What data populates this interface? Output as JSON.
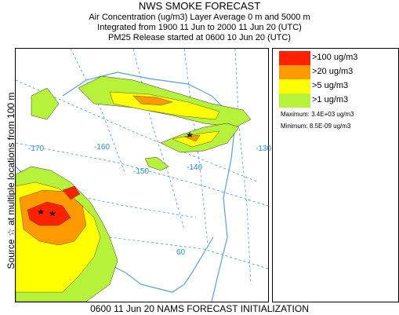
{
  "header": {
    "title": "NWS SMOKE FORECAST",
    "line1": "Air Concentration (ug/m3) Layer Average    0 m and  5000 m",
    "line2": "Integrated from 1900 11 Jun to 2000 11 Jun 20 (UTC)",
    "line3": "PM25 Release started at 0600 10 Jun 20 (UTC)"
  },
  "side_label": "Source ☆ at multiple locations     from   100 m",
  "map": {
    "longitude_labels": [
      "-170",
      "-160",
      "-150",
      "-140",
      "-130"
    ],
    "latitude_labels": [
      "60"
    ],
    "colors": {
      "coast": "#5aa0d8",
      "grid": "#2a8fd0",
      "level1": "#b6f23a",
      "level2": "#ffff00",
      "level3": "#ff9900",
      "level4": "#ff2200"
    }
  },
  "legend": {
    "items": [
      {
        "label": ">100 ug/m3",
        "color": "#ff2200"
      },
      {
        "label": ">20 ug/m3",
        "color": "#ff9900"
      },
      {
        "label": ">5 ug/m3",
        "color": "#ffff00"
      },
      {
        "label": ">1 ug/m3",
        "color": "#b6f23a"
      }
    ],
    "maximum": "Maximum: 3.4E+03 ug/m3",
    "minimum": "Minimum: 8.5E-09 ug/m3"
  },
  "footer": "0600 11 Jun 20 NAMS FORECAST INITIALIZATION"
}
